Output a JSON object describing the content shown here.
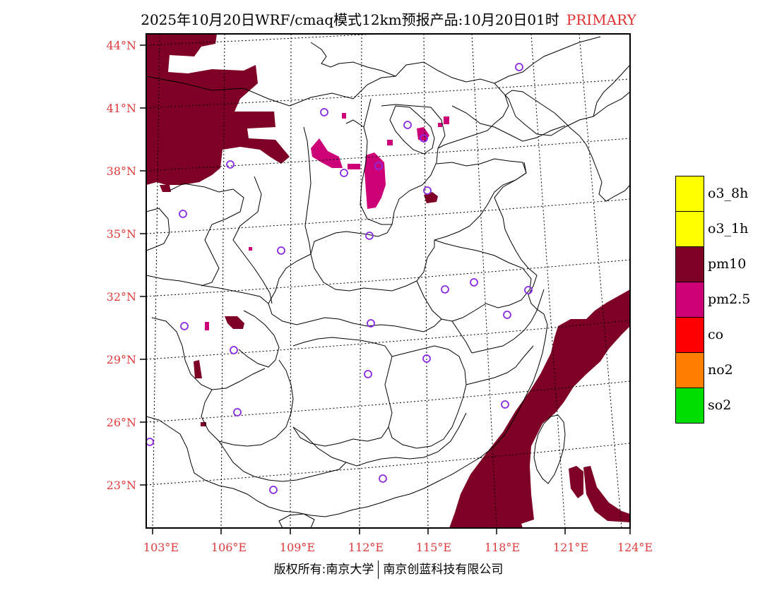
{
  "title": {
    "text": "2025年10月20日WRF/cmaq模式12km预报产品:10月20日01时",
    "tag": "PRIMARY"
  },
  "axes": {
    "lat_labels": [
      "44°N",
      "41°N",
      "38°N",
      "35°N",
      "32°N",
      "29°N",
      "26°N",
      "23°N"
    ],
    "lon_labels": [
      "103°E",
      "106°E",
      "109°E",
      "112°E",
      "115°E",
      "118°E",
      "121°E",
      "124°E"
    ]
  },
  "legend": [
    {
      "label": "o3_8h",
      "color": "#ffff00"
    },
    {
      "label": "o3_1h",
      "color": "#ffff00"
    },
    {
      "label": "pm10",
      "color": "#7f0026"
    },
    {
      "label": "pm2.5",
      "color": "#cc0077"
    },
    {
      "label": "co",
      "color": "#ff0000"
    },
    {
      "label": "no2",
      "color": "#ff7f00"
    },
    {
      "label": "so2",
      "color": "#00dd00"
    }
  ],
  "colors": {
    "pm10": "#7f0026",
    "pm25": "#cc0077",
    "station_marker": "#8a2be2",
    "axis_label": "#e03a3a"
  },
  "copyright": {
    "left": "版权所有:南京大学",
    "right": "南京创蓝科技有限公司"
  }
}
